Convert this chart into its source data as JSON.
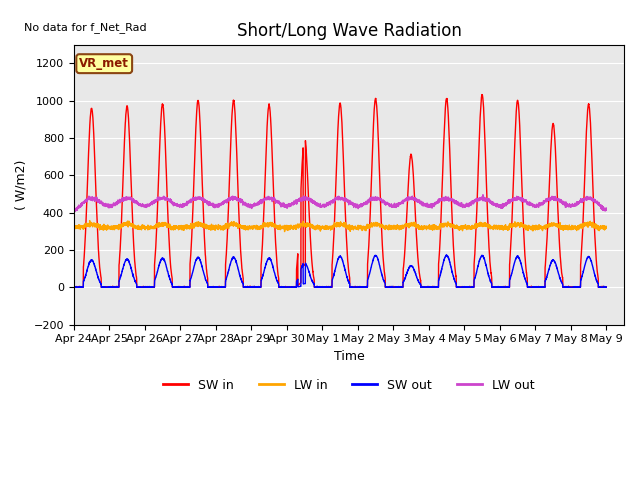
{
  "title": "Short/Long Wave Radiation",
  "top_left_text": "No data for f_Net_Rad",
  "legend_label_text": "VR_met",
  "xlabel": "Time",
  "ylabel": "( W/m2)",
  "ylim": [
    -200,
    1300
  ],
  "yticks": [
    -200,
    0,
    200,
    400,
    600,
    800,
    1000,
    1200
  ],
  "x_tick_labels": [
    "Apr 24",
    "Apr 25",
    "Apr 26",
    "Apr 27",
    "Apr 28",
    "Apr 29",
    "Apr 30",
    "May 1",
    "May 2",
    "May 3",
    "May 4",
    "May 5",
    "May 6",
    "May 7",
    "May 8",
    "May 9"
  ],
  "sw_in_color": "#ff0000",
  "lw_in_color": "#ffa500",
  "sw_out_color": "#0000ff",
  "lw_out_color": "#cc44cc",
  "bg_plot_color": "#e8e8e8",
  "legend_entries": [
    "SW in",
    "LW in",
    "SW out",
    "LW out"
  ],
  "sw_in_peaks": [
    960,
    970,
    980,
    1000,
    1000,
    975,
    800,
    985,
    1010,
    710,
    1010,
    1030,
    1000,
    875,
    980
  ],
  "sw_out_peaks": [
    145,
    150,
    155,
    160,
    160,
    155,
    130,
    165,
    170,
    115,
    170,
    168,
    165,
    145,
    163
  ],
  "lw_in_base": 320,
  "lw_out_base": 380,
  "lw_out_day_peak": 475,
  "grid_color": "#ffffff",
  "line_width": 1.0,
  "title_fontsize": 12,
  "label_fontsize": 9,
  "tick_fontsize": 8,
  "n_days": 15,
  "pts_per_day": 288,
  "xlim": [
    0,
    15.5
  ]
}
